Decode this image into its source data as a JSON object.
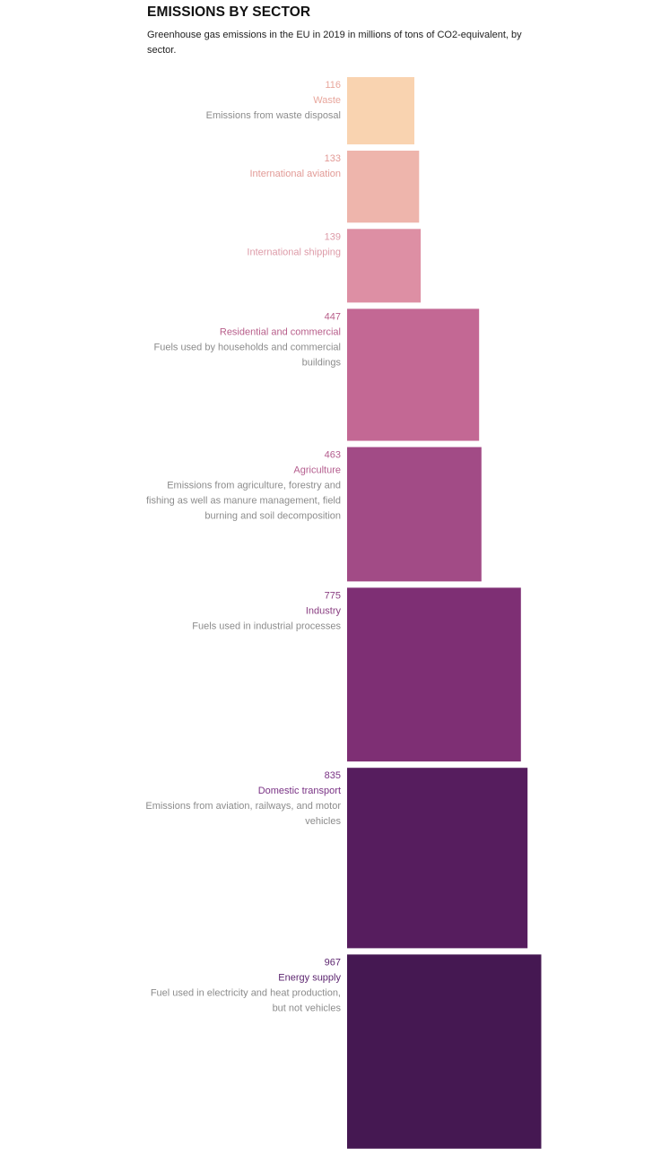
{
  "title": "EMISSIONS BY SECTOR",
  "subtitle": "Greenhouse gas emissions in the EU in 2019 in millions of tons of CO2-equivalent, by sector.",
  "chart_data": {
    "type": "bar",
    "title": "EMISSIONS BY SECTOR",
    "subtitle": "Greenhouse gas emissions in the EU in 2019 in millions of tons of CO2-equivalent, by sector.",
    "unit": "millions of tons of CO2-equivalent",
    "categories": [
      "Waste",
      "International aviation",
      "International shipping",
      "Residential and commercial",
      "Agriculture",
      "Industry",
      "Domestic transport",
      "Energy supply"
    ],
    "values": [
      116,
      133,
      139,
      447,
      463,
      775,
      835,
      967
    ],
    "items": [
      {
        "value": 116,
        "label": "Waste",
        "description": [
          "Emissions from waste disposal"
        ],
        "color": "#f9d3b0",
        "label_color": "#e8a69c",
        "desc_color": "#8c8c8c"
      },
      {
        "value": 133,
        "label": "International aviation",
        "description": [],
        "color": "#eeb5ac",
        "label_color": "#e29a96",
        "desc_color": "#8c8c8c"
      },
      {
        "value": 139,
        "label": "International shipping",
        "description": [],
        "color": "#dd8fa4",
        "label_color": "#dd9ba8",
        "desc_color": "#8c8c8c"
      },
      {
        "value": 447,
        "label": "Residential and commercial",
        "description": [
          "Fuels used by households and commercial",
          "buildings"
        ],
        "color": "#c36894",
        "label_color": "#b85f8b",
        "desc_color": "#8c8c8c"
      },
      {
        "value": 463,
        "label": "Agriculture",
        "description": [
          "Emissions from agriculture, forestry and",
          "fishing as well as manure management, field",
          "burning and soil decomposition"
        ],
        "color": "#a24b86",
        "label_color": "#b45d8e",
        "desc_color": "#8c8c8c"
      },
      {
        "value": 775,
        "label": "Industry",
        "description": [
          "Fuels used in industrial processes"
        ],
        "color": "#7e2f74",
        "label_color": "#8a3f82",
        "desc_color": "#8c8c8c"
      },
      {
        "value": 835,
        "label": "Domestic transport",
        "description": [
          "Emissions from aviation, railways, and motor",
          "vehicles"
        ],
        "color": "#561d5e",
        "label_color": "#7a3385",
        "desc_color": "#8c8c8c"
      },
      {
        "value": 967,
        "label": "Energy supply",
        "description": [
          "Fuel used in electricity and heat production,",
          "but not vehicles"
        ],
        "color": "#451852",
        "label_color": "#5d2670",
        "desc_color": "#8c8c8c"
      }
    ]
  }
}
